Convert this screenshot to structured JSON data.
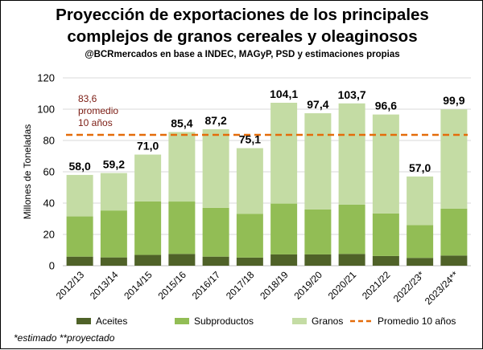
{
  "header": {
    "title_line1": "Proyección de exportaciones de los principales",
    "title_line2": "complejos de granos cereales y oleaginosos",
    "subtitle": "@BCRmercados en base a INDEC, MAGyP, PSD y estimaciones propias"
  },
  "footnote": "*estimado **proyectado",
  "chart_data": {
    "type": "bar",
    "stacked": true,
    "title": "Proyección de exportaciones de los principales complejos de granos cereales y oleaginosos",
    "subtitle": "@BCRmercados en base a INDEC, MAGyP, PSD y estimaciones propias",
    "xlabel": "",
    "ylabel": "Millones de Toneladas",
    "ylim": [
      0,
      120
    ],
    "yticks": [
      0,
      20,
      40,
      60,
      80,
      100,
      120
    ],
    "grid": true,
    "legend_position": "bottom",
    "categories": [
      "2012/13",
      "2013/14",
      "2014/15",
      "2015/16",
      "2016/17",
      "2017/18",
      "2018/19",
      "2019/20",
      "2020/21",
      "2021/22",
      "2022/23*",
      "2023/24**"
    ],
    "series": [
      {
        "name": "Aceites",
        "color": "#4f6228",
        "values": [
          5.8,
          5.3,
          6.9,
          7.5,
          5.8,
          5.2,
          7.2,
          7.2,
          7.5,
          6.2,
          5.0,
          6.5
        ]
      },
      {
        "name": "Subproductos",
        "color": "#92bd55",
        "values": [
          25.7,
          30.0,
          34.2,
          33.5,
          31.2,
          28.0,
          32.5,
          28.8,
          31.5,
          27.2,
          21.0,
          30.0
        ]
      },
      {
        "name": "Granos",
        "color": "#c4dca4",
        "values": [
          26.5,
          23.9,
          29.9,
          44.4,
          50.2,
          41.9,
          64.4,
          61.4,
          64.7,
          63.2,
          31.0,
          63.4
        ]
      }
    ],
    "totals": [
      58.0,
      59.2,
      71.0,
      85.4,
      87.2,
      75.1,
      104.1,
      97.4,
      103.7,
      96.6,
      57.0,
      99.9
    ],
    "total_labels": [
      "58,0",
      "59,2",
      "71,0",
      "85,4",
      "87,2",
      "75,1",
      "104,1",
      "97,4",
      "103,7",
      "96,6",
      "57,0",
      "99,9"
    ],
    "average_line": {
      "name": "Promedio 10 años",
      "value": 83.6,
      "label": [
        "83,6",
        "promedio",
        "10 años"
      ],
      "color": "#e46c0a",
      "label_color": "#7b1b12"
    }
  }
}
